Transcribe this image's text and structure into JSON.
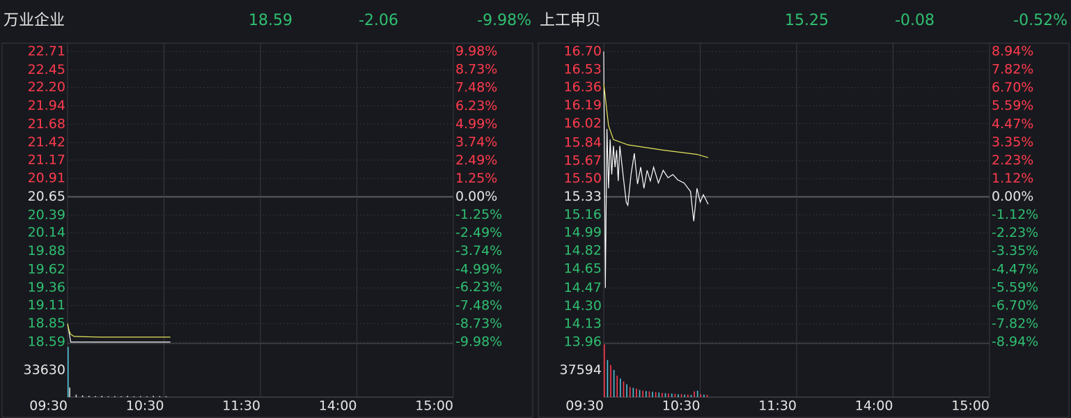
{
  "chart_data": [
    {
      "type": "line",
      "title": "万业企业",
      "price": "18.59",
      "change": "-2.06",
      "change_pct": "-9.98%",
      "xlim": [
        0,
        240
      ],
      "xticks": [
        {
          "value": 0,
          "label": "09:30"
        },
        {
          "value": 60,
          "label": "10:30"
        },
        {
          "value": 120,
          "label": "11:30"
        },
        {
          "value": 180,
          "label": "14:00"
        },
        {
          "value": 240,
          "label": "15:00"
        }
      ],
      "ylim": [
        18.59,
        22.71
      ],
      "yticks": [
        22.71,
        22.45,
        {
          "value": 22.2,
          "label": "22.20"
        },
        21.94,
        21.68,
        21.42,
        21.17,
        20.91,
        20.65,
        20.39,
        20.14,
        19.88,
        19.62,
        19.36,
        19.11,
        18.85,
        18.59
      ],
      "y2lim": [
        -9.98,
        9.98
      ],
      "y2ticks": [
        {
          "value": 9.98,
          "label": "9.98%"
        },
        {
          "value": 8.73,
          "label": "8.73%"
        },
        {
          "value": 7.48,
          "label": "7.48%"
        },
        {
          "value": 6.23,
          "label": "6.23%"
        },
        {
          "value": 4.99,
          "label": "4.99%"
        },
        {
          "value": 3.74,
          "label": "3.74%"
        },
        {
          "value": 2.49,
          "label": "2.49%"
        },
        {
          "value": 1.25,
          "label": "1.25%"
        },
        {
          "value": 0,
          "label": "0.00%"
        },
        {
          "value": -1.25,
          "label": "-1.25%"
        },
        {
          "value": -2.49,
          "label": "-2.49%"
        },
        {
          "value": -3.74,
          "label": "-3.74%"
        },
        {
          "value": -4.99,
          "label": "-4.99%"
        },
        {
          "value": -6.23,
          "label": "-6.23%"
        },
        {
          "value": -7.48,
          "label": "-7.48%"
        },
        {
          "value": -8.73,
          "label": "-8.73%"
        },
        {
          "value": -9.98,
          "label": "-9.98%"
        }
      ],
      "series": [
        {
          "color": "#ffffff",
          "x": [
            0,
            1,
            2,
            4,
            64
          ],
          "values": [
            18.85,
            18.72,
            18.59,
            18.59,
            18.59
          ]
        },
        {
          "color": "#e6e65a",
          "x": [
            0,
            1,
            2,
            4,
            20,
            64
          ],
          "values": [
            18.85,
            18.75,
            18.7,
            18.67,
            18.66,
            18.66
          ]
        }
      ],
      "vlim": [
        0,
        67260
      ],
      "vticks": [
        33630
      ],
      "volume": [
        {
          "color": "#4fc3d9",
          "x": [
            0
          ],
          "values": [
            63000
          ]
        },
        {
          "color": "#dddddd",
          "x": [
            1,
            5,
            9,
            13,
            17,
            21,
            25,
            29,
            33,
            37,
            41,
            45,
            49,
            53,
            57,
            61
          ],
          "values": [
            12000,
            3000,
            2000,
            1500,
            1200,
            1500,
            1000,
            1200,
            1000,
            1500,
            1000,
            1200,
            1000,
            1500,
            1200,
            1000
          ]
        }
      ]
    },
    {
      "type": "line",
      "title": "上工申贝",
      "price": "15.25",
      "change": "-0.08",
      "change_pct": "-0.52%",
      "xlim": [
        0,
        240
      ],
      "xticks": [
        {
          "value": 0,
          "label": "09:30"
        },
        {
          "value": 60,
          "label": "10:30"
        },
        {
          "value": 120,
          "label": "11:30"
        },
        {
          "value": 180,
          "label": "14:00"
        },
        {
          "value": 240,
          "label": "15:00"
        }
      ],
      "ylim": [
        13.96,
        16.7
      ],
      "yticks": [
        {
          "value": 16.7,
          "label": "16.70"
        },
        16.53,
        16.36,
        16.19,
        16.02,
        15.84,
        15.67,
        {
          "value": 15.5,
          "label": "15.50"
        },
        15.33,
        15.16,
        14.99,
        14.82,
        14.65,
        14.47,
        {
          "value": 14.3,
          "label": "14.30"
        },
        14.13,
        13.96
      ],
      "y2lim": [
        -8.94,
        8.94
      ],
      "y2ticks": [
        {
          "value": 8.94,
          "label": "8.94%"
        },
        {
          "value": 7.82,
          "label": "7.82%"
        },
        {
          "value": 6.7,
          "label": "6.70%"
        },
        {
          "value": 5.59,
          "label": "5.59%"
        },
        {
          "value": 4.47,
          "label": "4.47%"
        },
        {
          "value": 3.35,
          "label": "3.35%"
        },
        {
          "value": 2.23,
          "label": "2.23%"
        },
        {
          "value": 1.12,
          "label": "1.12%"
        },
        {
          "value": 0,
          "label": "0.00%"
        },
        {
          "value": -1.12,
          "label": "-1.12%"
        },
        {
          "value": -2.23,
          "label": "-2.23%"
        },
        {
          "value": -3.35,
          "label": "-3.35%"
        },
        {
          "value": -4.47,
          "label": "-4.47%"
        },
        {
          "value": -5.59,
          "label": "-5.59%"
        },
        {
          "value": -6.7,
          "label": "-6.70%"
        },
        {
          "value": -7.82,
          "label": "-7.82%"
        },
        {
          "value": -8.94,
          "label": "-8.94%"
        }
      ],
      "series": [
        {
          "color": "#ffffff",
          "x": [
            0,
            1,
            2,
            3,
            4,
            5,
            6,
            7,
            8,
            9,
            10,
            12,
            14,
            15,
            17,
            19,
            21,
            23,
            25,
            27,
            29,
            31,
            34,
            37,
            40,
            43,
            46,
            50,
            54,
            56,
            58,
            60,
            62,
            65
          ],
          "values": [
            16.7,
            14.47,
            15.97,
            15.41,
            15.87,
            15.54,
            15.81,
            15.61,
            15.77,
            15.48,
            15.81,
            15.54,
            15.28,
            15.25,
            15.54,
            15.74,
            15.45,
            15.61,
            15.41,
            15.58,
            15.48,
            15.61,
            15.46,
            15.58,
            15.51,
            15.54,
            15.49,
            15.46,
            15.38,
            15.1,
            15.41,
            15.28,
            15.35,
            15.26
          ]
        },
        {
          "color": "#e6e65a",
          "x": [
            0,
            3,
            6,
            15,
            37,
            58,
            65
          ],
          "values": [
            16.4,
            16.0,
            15.87,
            15.82,
            15.77,
            15.73,
            15.7
          ]
        }
      ],
      "vlim": [
        0,
        75188
      ],
      "vticks": [
        37594
      ],
      "volume": [
        {
          "color": "#ff3b4e",
          "x": [
            0,
            4,
            8,
            12,
            16,
            20,
            24,
            28,
            32,
            36,
            40,
            44,
            48,
            52,
            56,
            60,
            64
          ],
          "values": [
            74000,
            45000,
            30000,
            22000,
            14000,
            12000,
            9000,
            8000,
            7000,
            6000,
            5000,
            4500,
            4000,
            3500,
            8000,
            4000,
            3000
          ]
        },
        {
          "color": "#4fc3d9",
          "x": [
            2,
            6,
            10,
            14,
            18,
            22,
            26,
            30,
            34,
            38,
            42,
            46,
            50,
            54,
            58,
            62
          ],
          "values": [
            52000,
            38000,
            26000,
            18000,
            13000,
            10000,
            8500,
            7500,
            6500,
            5500,
            5000,
            4000,
            3500,
            3000,
            9000,
            3500
          ]
        }
      ]
    }
  ]
}
